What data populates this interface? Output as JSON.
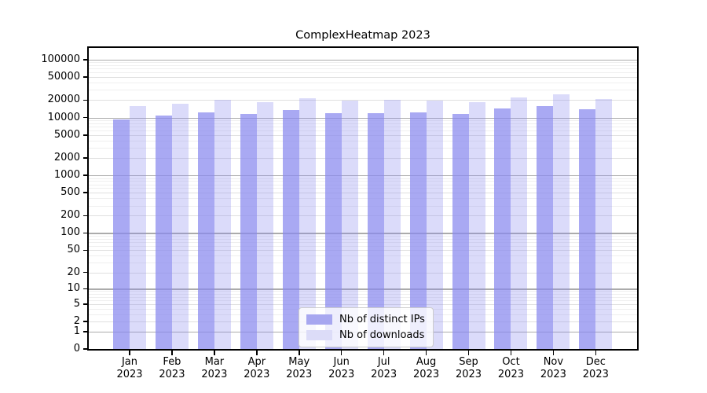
{
  "title": "ComplexHeatmap 2023",
  "chart_data": {
    "type": "bar",
    "title": "ComplexHeatmap 2023",
    "scale": "log1p",
    "grid": true,
    "legend_position": "bottom-center",
    "xlabel": "",
    "ylabel": "",
    "categories": [
      "Jan",
      "Feb",
      "Mar",
      "Apr",
      "May",
      "Jun",
      "Jul",
      "Aug",
      "Sep",
      "Oct",
      "Nov",
      "Dec"
    ],
    "x_year": "2023",
    "y_ticks": [
      100000,
      50000,
      20000,
      10000,
      5000,
      2000,
      1000,
      500,
      200,
      100,
      50,
      20,
      10,
      5,
      2,
      1,
      0
    ],
    "series": [
      {
        "name": "Nb of distinct IPs",
        "color": "#8888ee",
        "alpha": 0.72,
        "displayed_color": "#a7a7f0",
        "values": [
          9150,
          10850,
          12500,
          11550,
          13500,
          11900,
          11850,
          12400,
          11700,
          14400,
          15600,
          13900
        ]
      },
      {
        "name": "Nb of downloads",
        "color": "#8888ee",
        "alpha": 0.3,
        "displayed_color": "#dcdcf8",
        "values": [
          15800,
          17100,
          20600,
          18250,
          21800,
          19400,
          20050,
          19900,
          18450,
          22300,
          24950,
          21150
        ]
      }
    ]
  }
}
